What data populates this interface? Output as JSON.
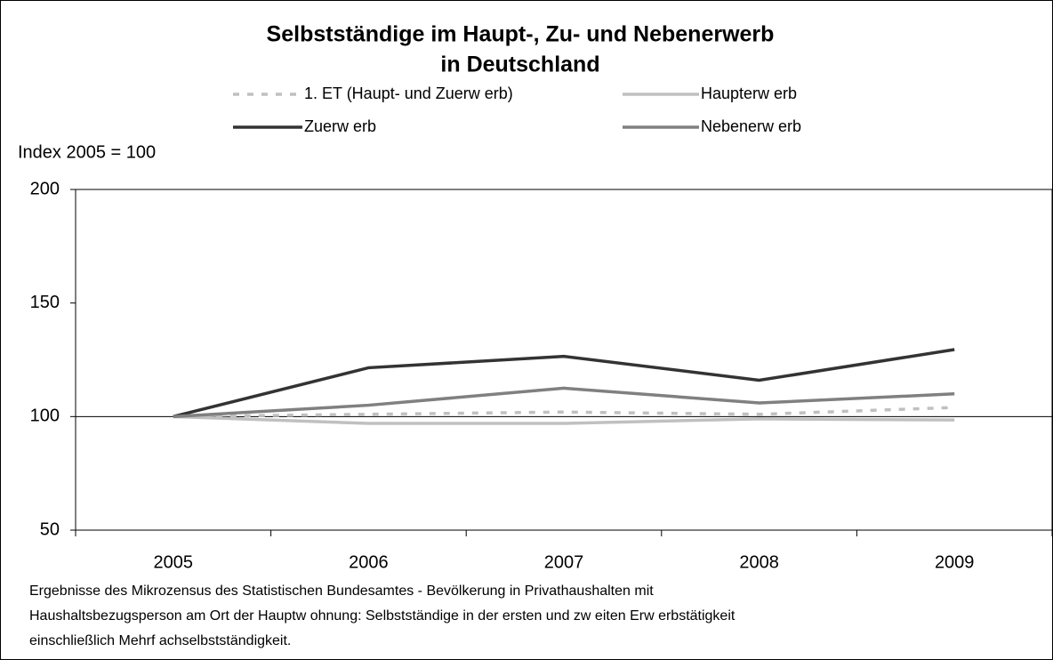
{
  "chart_data": {
    "type": "line",
    "title": [
      "Selbstständige im Haupt-, Zu- und Nebenerwerb",
      "in Deutschland"
    ],
    "y_axis_label": "Index 2005 = 100",
    "categories": [
      "2005",
      "2006",
      "2007",
      "2008",
      "2009"
    ],
    "series": [
      {
        "name": "1. ET (Haupt- und Zuerw erb)",
        "color": "#c0c0c0",
        "dashed": true,
        "values": [
          100,
          101,
          102,
          101,
          104
        ]
      },
      {
        "name": "Haupterw erb",
        "color": "#c0c0c0",
        "dashed": false,
        "values": [
          100,
          97,
          97,
          99,
          98.5
        ]
      },
      {
        "name": "Zuerw erb",
        "color": "#333333",
        "dashed": false,
        "values": [
          100,
          121.5,
          126.5,
          116,
          129.5
        ]
      },
      {
        "name": "Nebenerw erb",
        "color": "#808080",
        "dashed": false,
        "values": [
          100,
          105,
          112.5,
          106,
          110
        ]
      }
    ],
    "reference_line": 100,
    "ylim": [
      50,
      200
    ],
    "yticks": [
      50,
      100,
      150,
      200
    ],
    "footnote": [
      "Ergebnisse des Mikrozensus des Statistischen Bundesamtes - Bevölkerung in Privathaushalten mit",
      "Haushaltsbezugsperson am Ort der Hauptw ohnung: Selbstständige in der ersten und zw eiten Erw erbstätigkeit",
      "einschließlich Mehrf achselbstständigkeit."
    ]
  }
}
